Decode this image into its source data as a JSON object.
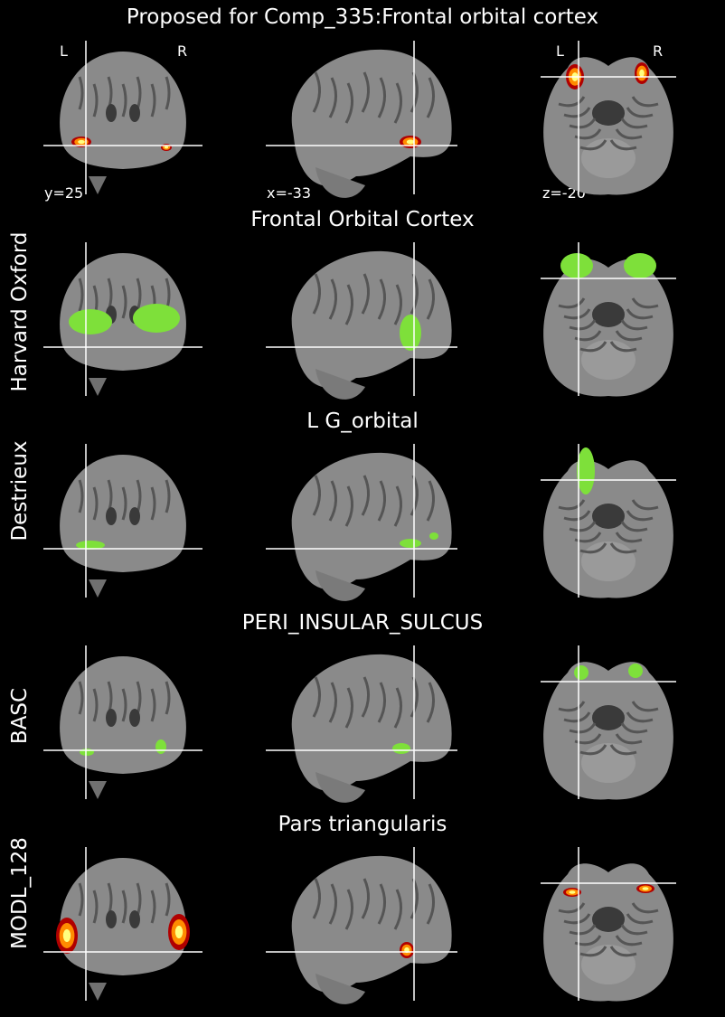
{
  "header": {
    "title": "Proposed for Comp_335:Frontal orbital cortex",
    "orientation": {
      "left": "L",
      "right": "R"
    },
    "coords": {
      "coronal": "y=25",
      "sagittal": "x=-33",
      "axial": "z=-20"
    }
  },
  "rows": [
    {
      "atlas_label": "",
      "region_title": "",
      "overlay": "heat"
    },
    {
      "atlas_label": "Harvard Oxford",
      "region_title": "Frontal Orbital Cortex",
      "overlay": "green"
    },
    {
      "atlas_label": "Destrieux",
      "region_title": "L G_orbital",
      "overlay": "green"
    },
    {
      "atlas_label": "BASC",
      "region_title": "PERI_INSULAR_SULCUS",
      "overlay": "green"
    },
    {
      "atlas_label": "MODL_128",
      "region_title": "Pars triangularis",
      "overlay": "heat"
    }
  ],
  "colors": {
    "background": "#000000",
    "crosshair": "#ffffff",
    "atlas_green": "#7ee03a",
    "heat_hot": "#ffff80",
    "heat_mid": "#ff8c00",
    "heat_low": "#b00000"
  }
}
